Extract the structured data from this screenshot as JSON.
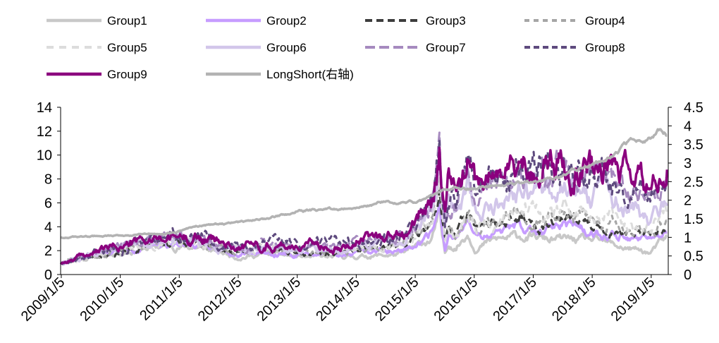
{
  "chart_data": {
    "type": "line",
    "title": "",
    "x_ticks": [
      "2009/1/5",
      "2010/1/5",
      "2011/1/5",
      "2012/1/5",
      "2013/1/5",
      "2014/1/5",
      "2015/1/5",
      "2016/1/5",
      "2017/1/5",
      "2018/1/5",
      "2019/1/5"
    ],
    "x_range": [
      2009.0,
      2019.3
    ],
    "y_left": {
      "range": [
        0,
        14
      ],
      "ticks": [
        "0",
        "2",
        "4",
        "6",
        "8",
        "10",
        "12",
        "14"
      ]
    },
    "y_right": {
      "range": [
        0,
        4.5
      ],
      "ticks": [
        "0",
        "0.5",
        "1",
        "1.5",
        "2",
        "2.5",
        "3",
        "3.5",
        "4",
        "4.5"
      ]
    },
    "grid": false,
    "legend_position": "top",
    "series": [
      {
        "name": "Group1",
        "axis": "left",
        "color": "#c8c8c8",
        "dash": "solid",
        "width": 4.5,
        "noise": 0.13,
        "seed": 11,
        "points": [
          [
            2009.0,
            1.0
          ],
          [
            2010.0,
            1.9
          ],
          [
            2010.8,
            2.4
          ],
          [
            2011.3,
            2.3
          ],
          [
            2012.0,
            1.5
          ],
          [
            2012.5,
            1.7
          ],
          [
            2013.0,
            1.5
          ],
          [
            2013.5,
            1.4
          ],
          [
            2014.0,
            1.5
          ],
          [
            2014.8,
            1.7
          ],
          [
            2015.0,
            2.2
          ],
          [
            2015.3,
            3.0
          ],
          [
            2015.42,
            5.0
          ],
          [
            2015.46,
            3.2
          ],
          [
            2015.52,
            1.6
          ],
          [
            2015.57,
            2.6
          ],
          [
            2015.7,
            2.3
          ],
          [
            2015.9,
            3.6
          ],
          [
            2016.05,
            2.2
          ],
          [
            2016.3,
            2.8
          ],
          [
            2016.8,
            3.2
          ],
          [
            2017.3,
            2.9
          ],
          [
            2017.6,
            2.9
          ],
          [
            2018.0,
            2.8
          ],
          [
            2018.5,
            2.3
          ],
          [
            2019.0,
            1.8
          ],
          [
            2019.15,
            2.5
          ],
          [
            2019.28,
            3.0
          ]
        ]
      },
      {
        "name": "Group2",
        "axis": "left",
        "color": "#c69cff",
        "dash": "solid",
        "width": 4.5,
        "noise": 0.12,
        "seed": 22,
        "points": [
          [
            2009.0,
            1.0
          ],
          [
            2010.0,
            2.0
          ],
          [
            2010.8,
            2.6
          ],
          [
            2011.3,
            2.6
          ],
          [
            2012.0,
            1.8
          ],
          [
            2012.5,
            2.0
          ],
          [
            2013.0,
            1.7
          ],
          [
            2013.5,
            1.7
          ],
          [
            2014.0,
            1.8
          ],
          [
            2014.8,
            2.1
          ],
          [
            2015.0,
            2.6
          ],
          [
            2015.3,
            3.5
          ],
          [
            2015.42,
            5.8
          ],
          [
            2015.46,
            3.8
          ],
          [
            2015.52,
            2.0
          ],
          [
            2015.57,
            3.2
          ],
          [
            2015.7,
            2.9
          ],
          [
            2015.9,
            4.3
          ],
          [
            2016.05,
            2.9
          ],
          [
            2016.3,
            3.5
          ],
          [
            2016.8,
            4.0
          ],
          [
            2017.3,
            3.7
          ],
          [
            2017.6,
            4.0
          ],
          [
            2018.0,
            3.6
          ],
          [
            2018.5,
            3.2
          ],
          [
            2019.0,
            2.6
          ],
          [
            2019.15,
            2.9
          ],
          [
            2019.28,
            3.4
          ]
        ]
      },
      {
        "name": "Group3",
        "axis": "left",
        "color": "#3d3d3d",
        "dash": "10,6",
        "width": 4,
        "noise": 0.13,
        "seed": 33,
        "points": [
          [
            2009.0,
            1.0
          ],
          [
            2010.0,
            2.1
          ],
          [
            2010.8,
            2.7
          ],
          [
            2011.3,
            2.7
          ],
          [
            2012.0,
            1.9
          ],
          [
            2012.5,
            2.1
          ],
          [
            2013.0,
            1.9
          ],
          [
            2013.5,
            1.9
          ],
          [
            2014.0,
            2.0
          ],
          [
            2014.8,
            2.4
          ],
          [
            2015.0,
            3.0
          ],
          [
            2015.3,
            4.0
          ],
          [
            2015.42,
            6.5
          ],
          [
            2015.46,
            4.3
          ],
          [
            2015.52,
            2.6
          ],
          [
            2015.57,
            3.7
          ],
          [
            2015.7,
            3.3
          ],
          [
            2015.9,
            4.9
          ],
          [
            2016.05,
            3.4
          ],
          [
            2016.3,
            4.0
          ],
          [
            2016.8,
            4.6
          ],
          [
            2017.3,
            4.3
          ],
          [
            2017.6,
            4.6
          ],
          [
            2018.0,
            4.1
          ],
          [
            2018.5,
            3.7
          ],
          [
            2019.0,
            3.0
          ],
          [
            2019.15,
            3.4
          ],
          [
            2019.28,
            3.9
          ]
        ]
      },
      {
        "name": "Group4",
        "axis": "left",
        "color": "#a6a6a6",
        "dash": "7,6",
        "width": 4,
        "noise": 0.14,
        "seed": 44,
        "points": [
          [
            2009.0,
            1.0
          ],
          [
            2010.0,
            2.1
          ],
          [
            2010.8,
            2.7
          ],
          [
            2011.3,
            2.7
          ],
          [
            2012.0,
            1.9
          ],
          [
            2012.5,
            2.1
          ],
          [
            2013.0,
            2.0
          ],
          [
            2013.5,
            2.0
          ],
          [
            2014.0,
            2.1
          ],
          [
            2014.8,
            2.5
          ],
          [
            2015.0,
            3.1
          ],
          [
            2015.3,
            4.2
          ],
          [
            2015.42,
            6.8
          ],
          [
            2015.46,
            4.6
          ],
          [
            2015.52,
            2.8
          ],
          [
            2015.57,
            4.0
          ],
          [
            2015.7,
            3.5
          ],
          [
            2015.9,
            5.1
          ],
          [
            2016.05,
            3.6
          ],
          [
            2016.3,
            4.3
          ],
          [
            2016.8,
            5.0
          ],
          [
            2017.3,
            4.6
          ],
          [
            2017.6,
            5.0
          ],
          [
            2018.0,
            4.5
          ],
          [
            2018.5,
            4.0
          ],
          [
            2019.0,
            3.3
          ],
          [
            2019.15,
            3.8
          ],
          [
            2019.28,
            4.4
          ]
        ]
      },
      {
        "name": "Group5",
        "axis": "left",
        "color": "#dcdcdc",
        "dash": "10,8",
        "width": 4,
        "noise": 0.15,
        "seed": 55,
        "points": [
          [
            2009.0,
            1.0
          ],
          [
            2010.0,
            2.2
          ],
          [
            2010.8,
            2.8
          ],
          [
            2011.3,
            2.8
          ],
          [
            2012.0,
            2.0
          ],
          [
            2012.5,
            2.2
          ],
          [
            2013.0,
            2.1
          ],
          [
            2013.5,
            2.1
          ],
          [
            2014.0,
            2.2
          ],
          [
            2014.8,
            2.7
          ],
          [
            2015.0,
            3.3
          ],
          [
            2015.3,
            4.5
          ],
          [
            2015.42,
            7.2
          ],
          [
            2015.46,
            4.9
          ],
          [
            2015.52,
            3.0
          ],
          [
            2015.57,
            4.4
          ],
          [
            2015.7,
            3.8
          ],
          [
            2015.9,
            5.6
          ],
          [
            2016.05,
            4.0
          ],
          [
            2016.3,
            4.8
          ],
          [
            2016.8,
            5.5
          ],
          [
            2017.3,
            5.1
          ],
          [
            2017.6,
            5.6
          ],
          [
            2018.0,
            5.0
          ],
          [
            2018.5,
            4.5
          ],
          [
            2019.0,
            3.7
          ],
          [
            2019.15,
            4.3
          ],
          [
            2019.28,
            5.0
          ]
        ]
      },
      {
        "name": "Group6",
        "axis": "left",
        "color": "#d2c6ea",
        "dash": "solid",
        "width": 4.5,
        "noise": 0.15,
        "seed": 66,
        "points": [
          [
            2009.0,
            1.0
          ],
          [
            2010.0,
            2.3
          ],
          [
            2010.8,
            2.9
          ],
          [
            2011.3,
            2.9
          ],
          [
            2012.0,
            2.1
          ],
          [
            2012.5,
            2.3
          ],
          [
            2013.0,
            2.2
          ],
          [
            2013.5,
            2.2
          ],
          [
            2014.0,
            2.4
          ],
          [
            2014.8,
            2.9
          ],
          [
            2015.0,
            3.6
          ],
          [
            2015.3,
            5.3
          ],
          [
            2015.42,
            8.5
          ],
          [
            2015.46,
            6.0
          ],
          [
            2015.52,
            3.6
          ],
          [
            2015.57,
            5.6
          ],
          [
            2015.7,
            5.0
          ],
          [
            2015.9,
            7.2
          ],
          [
            2016.05,
            5.3
          ],
          [
            2016.3,
            6.2
          ],
          [
            2016.8,
            7.0
          ],
          [
            2017.3,
            7.1
          ],
          [
            2017.6,
            7.4
          ],
          [
            2018.0,
            7.0
          ],
          [
            2018.5,
            6.4
          ],
          [
            2019.0,
            5.0
          ],
          [
            2019.15,
            5.8
          ],
          [
            2019.28,
            6.5
          ]
        ]
      },
      {
        "name": "Group7",
        "axis": "left",
        "color": "#a68abf",
        "dash": "14,6",
        "width": 4,
        "noise": 0.16,
        "seed": 77,
        "points": [
          [
            2009.0,
            1.0
          ],
          [
            2010.0,
            2.3
          ],
          [
            2010.8,
            3.0
          ],
          [
            2011.3,
            3.0
          ],
          [
            2012.0,
            2.2
          ],
          [
            2012.5,
            2.4
          ],
          [
            2013.0,
            2.3
          ],
          [
            2013.5,
            2.3
          ],
          [
            2014.0,
            2.6
          ],
          [
            2014.8,
            3.1
          ],
          [
            2015.0,
            3.8
          ],
          [
            2015.3,
            5.7
          ],
          [
            2015.42,
            9.4
          ],
          [
            2015.46,
            6.6
          ],
          [
            2015.52,
            4.0
          ],
          [
            2015.57,
            6.4
          ],
          [
            2015.7,
            5.6
          ],
          [
            2015.9,
            8.2
          ],
          [
            2016.05,
            6.0
          ],
          [
            2016.3,
            7.0
          ],
          [
            2016.8,
            7.9
          ],
          [
            2017.3,
            8.0
          ],
          [
            2017.6,
            8.4
          ],
          [
            2018.0,
            8.0
          ],
          [
            2018.5,
            7.3
          ],
          [
            2019.0,
            5.8
          ],
          [
            2019.15,
            6.6
          ],
          [
            2019.28,
            7.4
          ]
        ]
      },
      {
        "name": "Group8",
        "axis": "left",
        "color": "#5e4a7e",
        "dash": "8,5",
        "width": 4,
        "noise": 0.17,
        "seed": 88,
        "points": [
          [
            2009.0,
            1.0
          ],
          [
            2010.0,
            2.4
          ],
          [
            2010.8,
            3.0
          ],
          [
            2011.3,
            3.1
          ],
          [
            2012.0,
            2.2
          ],
          [
            2012.5,
            2.5
          ],
          [
            2013.0,
            2.4
          ],
          [
            2013.5,
            2.4
          ],
          [
            2014.0,
            2.7
          ],
          [
            2014.8,
            3.2
          ],
          [
            2015.0,
            4.0
          ],
          [
            2015.3,
            6.0
          ],
          [
            2015.42,
            10.3
          ],
          [
            2015.46,
            7.3
          ],
          [
            2015.52,
            4.2
          ],
          [
            2015.57,
            6.9
          ],
          [
            2015.7,
            6.1
          ],
          [
            2015.9,
            8.8
          ],
          [
            2016.05,
            6.5
          ],
          [
            2016.3,
            7.5
          ],
          [
            2016.8,
            8.5
          ],
          [
            2017.3,
            8.7
          ],
          [
            2017.6,
            9.1
          ],
          [
            2018.0,
            8.8
          ],
          [
            2018.5,
            8.0
          ],
          [
            2019.0,
            6.4
          ],
          [
            2019.15,
            7.2
          ],
          [
            2019.28,
            8.2
          ]
        ]
      },
      {
        "name": "Group9",
        "axis": "left",
        "color": "#8b007e",
        "dash": "solid",
        "width": 4.5,
        "noise": 0.17,
        "seed": 99,
        "points": [
          [
            2009.0,
            1.0
          ],
          [
            2010.0,
            2.4
          ],
          [
            2010.8,
            3.1
          ],
          [
            2011.3,
            3.2
          ],
          [
            2012.0,
            2.3
          ],
          [
            2012.5,
            2.6
          ],
          [
            2013.0,
            2.5
          ],
          [
            2013.5,
            2.5
          ],
          [
            2014.0,
            2.9
          ],
          [
            2014.8,
            3.4
          ],
          [
            2015.0,
            4.2
          ],
          [
            2015.3,
            6.4
          ],
          [
            2015.42,
            11.8
          ],
          [
            2015.46,
            8.2
          ],
          [
            2015.52,
            4.6
          ],
          [
            2015.57,
            7.6
          ],
          [
            2015.7,
            6.8
          ],
          [
            2015.9,
            9.6
          ],
          [
            2016.05,
            7.2
          ],
          [
            2016.3,
            8.3
          ],
          [
            2016.8,
            9.2
          ],
          [
            2017.3,
            9.4
          ],
          [
            2017.6,
            9.6
          ],
          [
            2018.0,
            9.4
          ],
          [
            2018.5,
            8.6
          ],
          [
            2019.0,
            6.9
          ],
          [
            2019.15,
            7.7
          ],
          [
            2019.28,
            9.2
          ]
        ]
      },
      {
        "name": "LongShort(右轴)",
        "axis": "right",
        "color": "#b3b3b3",
        "dash": "solid",
        "width": 4.5,
        "noise": 0.012,
        "seed": 123,
        "points": [
          [
            2009.0,
            1.0
          ],
          [
            2010.0,
            1.05
          ],
          [
            2010.8,
            1.1
          ],
          [
            2011.3,
            1.3
          ],
          [
            2012.0,
            1.4
          ],
          [
            2012.5,
            1.5
          ],
          [
            2013.0,
            1.7
          ],
          [
            2013.5,
            1.75
          ],
          [
            2014.0,
            1.8
          ],
          [
            2014.5,
            1.95
          ],
          [
            2015.0,
            1.95
          ],
          [
            2015.3,
            2.1
          ],
          [
            2015.5,
            2.3
          ],
          [
            2016.0,
            2.3
          ],
          [
            2016.5,
            2.45
          ],
          [
            2017.0,
            2.5
          ],
          [
            2017.5,
            2.65
          ],
          [
            2018.0,
            2.95
          ],
          [
            2018.4,
            3.25
          ],
          [
            2018.7,
            3.6
          ],
          [
            2019.0,
            3.65
          ],
          [
            2019.12,
            3.85
          ],
          [
            2019.28,
            3.75
          ]
        ]
      }
    ]
  }
}
